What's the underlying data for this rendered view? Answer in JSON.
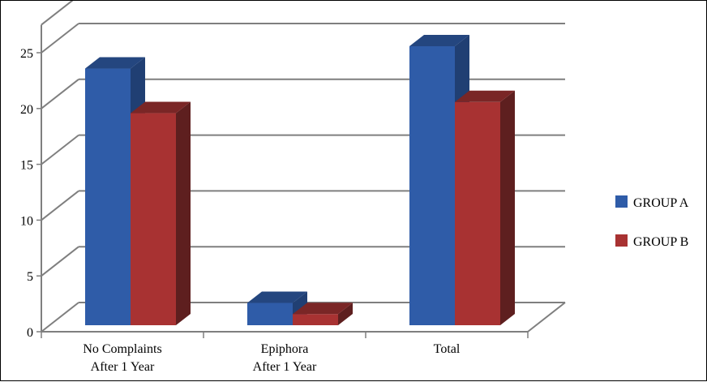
{
  "chart_data": {
    "type": "bar",
    "style": "3d-clustered-column",
    "categories": [
      [
        "No Complaints",
        "After 1 Year"
      ],
      [
        "Epiphora",
        "After 1 Year"
      ],
      [
        "Total"
      ]
    ],
    "series": [
      {
        "name": "GROUP A",
        "values": [
          23,
          2,
          25
        ]
      },
      {
        "name": "GROUP B",
        "values": [
          19,
          1,
          20
        ]
      }
    ],
    "yticks": [
      0,
      5,
      10,
      15,
      20,
      25
    ],
    "ylim": [
      0,
      27.5
    ],
    "grid": true,
    "legend": "right"
  },
  "colors": {
    "series": [
      {
        "front": "#2f5ca8",
        "side": "#203f73",
        "top": "#24467f"
      },
      {
        "front": "#a83232",
        "side": "#5e1f1f",
        "top": "#7a2626"
      }
    ],
    "grid": "#7f7f7f",
    "axis": "#7f7f7f"
  }
}
